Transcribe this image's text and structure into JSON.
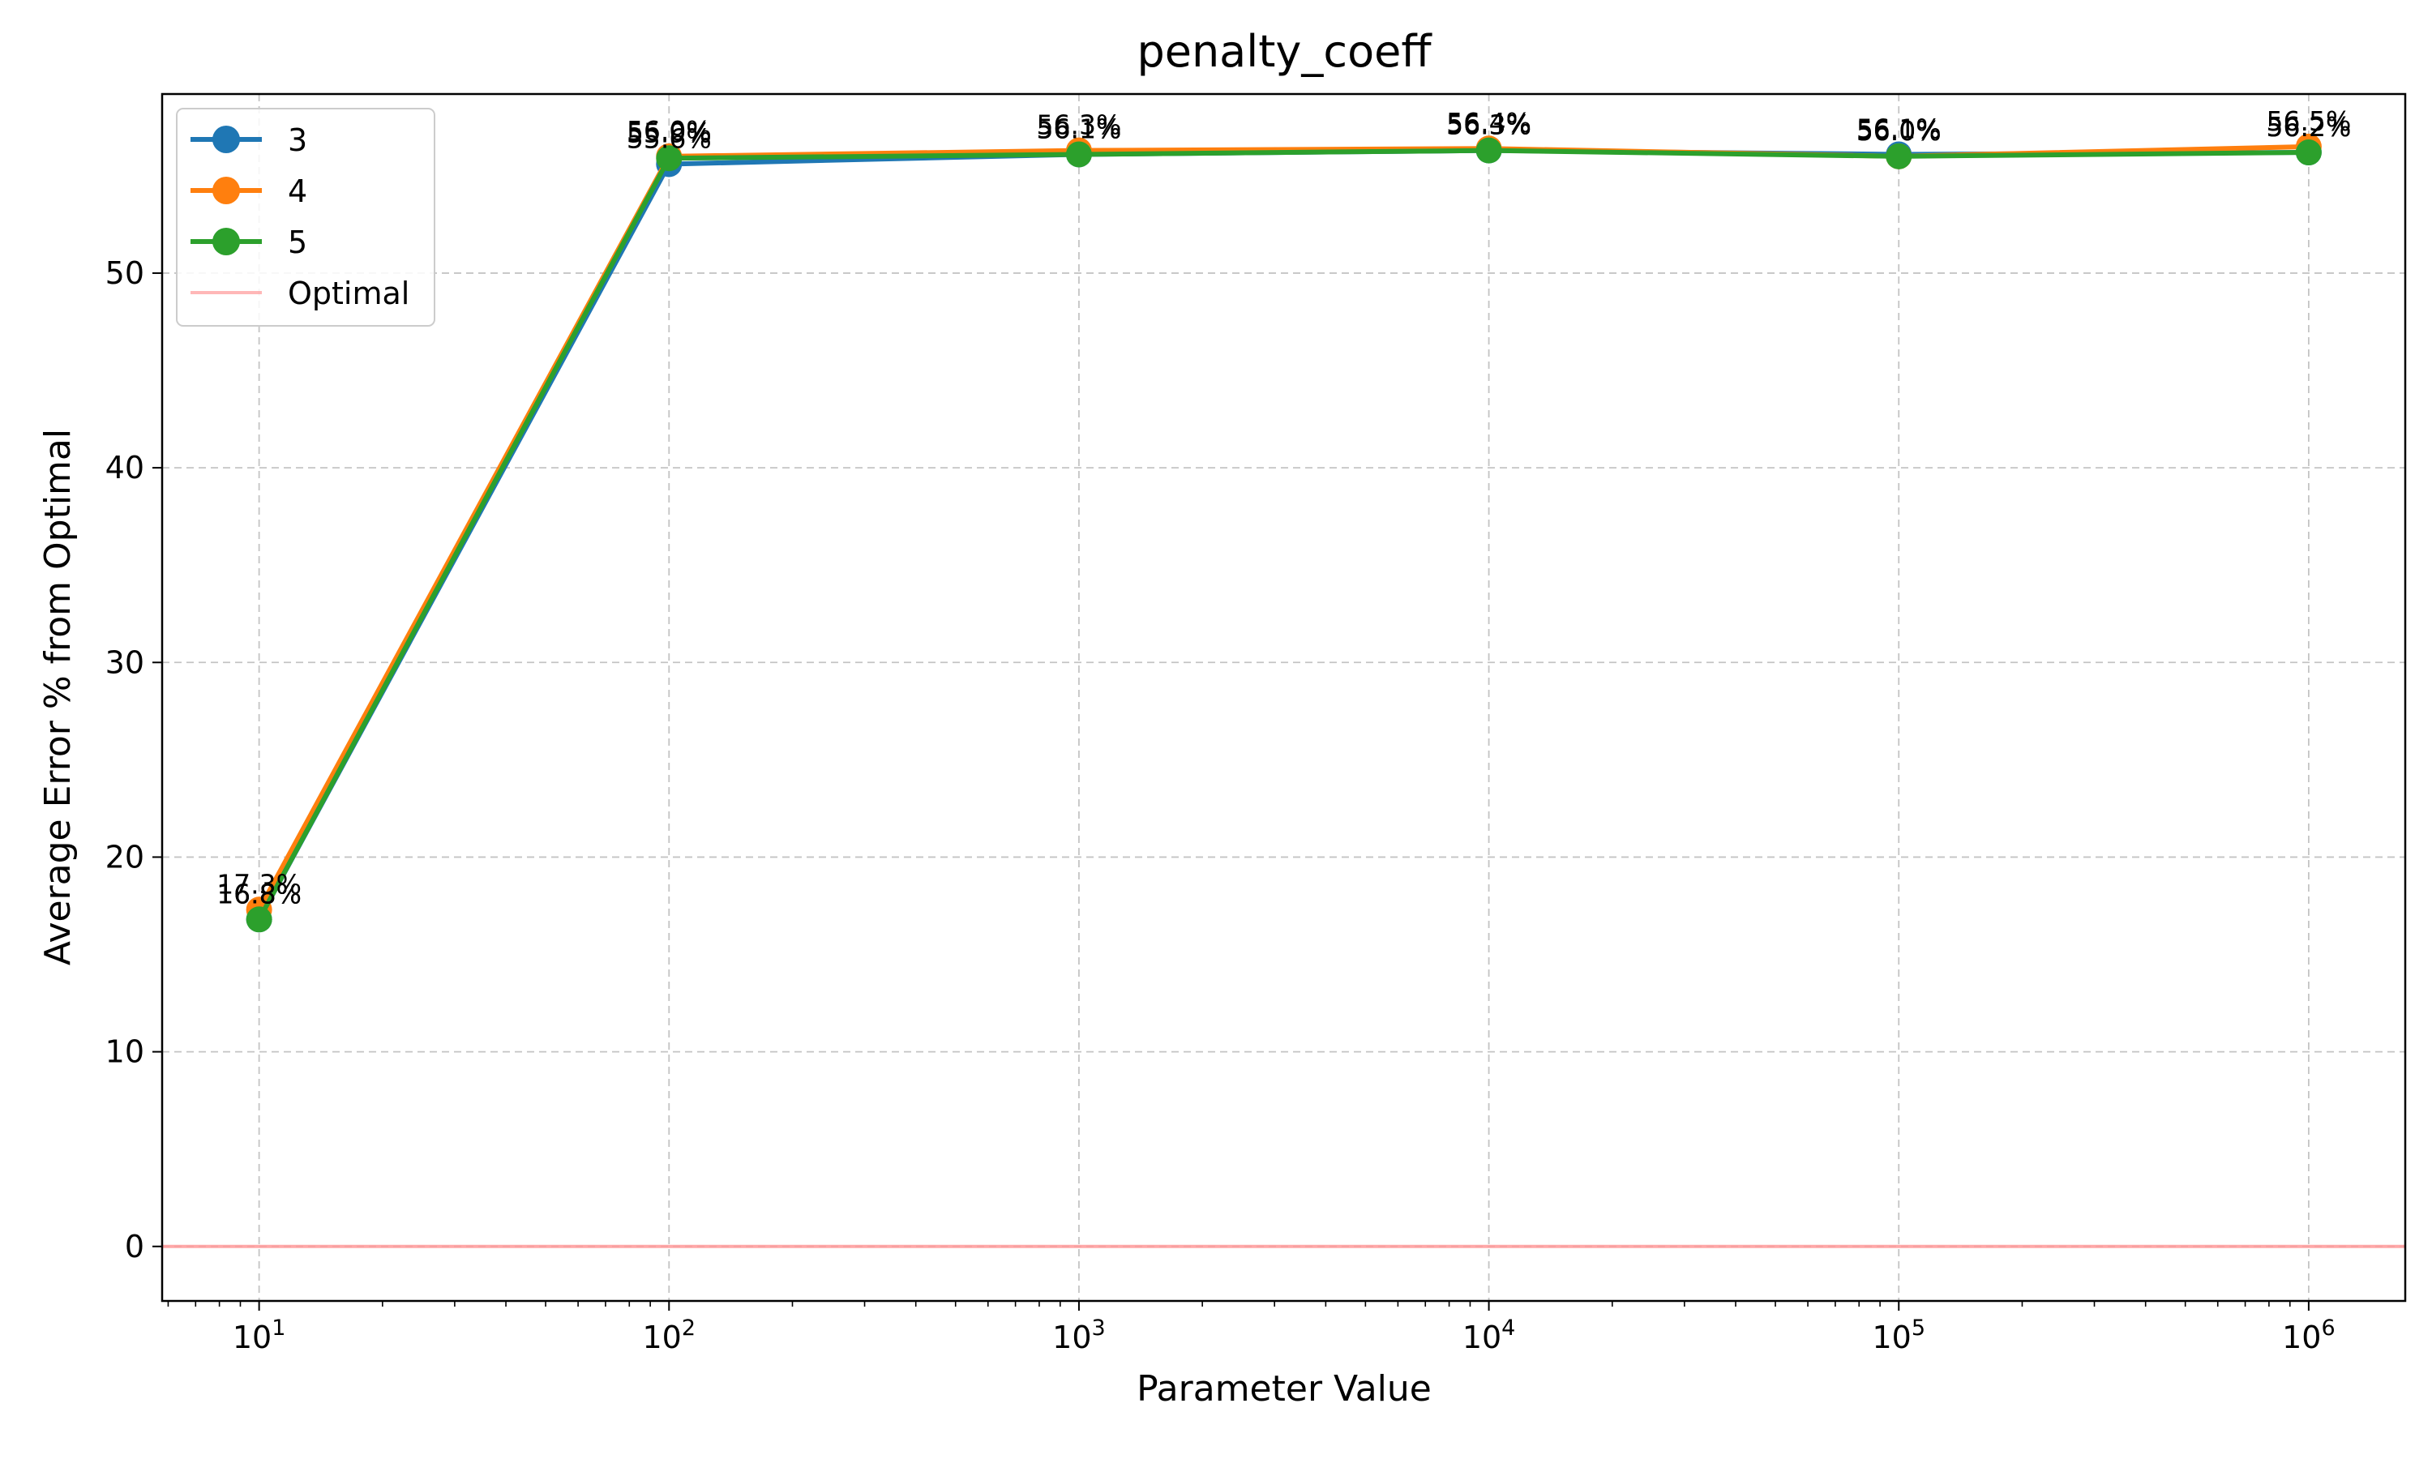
{
  "chart_data": {
    "type": "line",
    "title": "penalty_coeff",
    "xlabel": "Parameter Value",
    "ylabel": "Average Error % from Optimal",
    "x_scale": "log",
    "xlim": [
      5.8,
      1720000
    ],
    "ylim": [
      -2.8,
      59.2
    ],
    "x": [
      10,
      100,
      1000,
      10000,
      100000,
      1000000
    ],
    "x_tick_labels": [
      {
        "base": "10",
        "exp": "1"
      },
      {
        "base": "10",
        "exp": "2"
      },
      {
        "base": "10",
        "exp": "3"
      },
      {
        "base": "10",
        "exp": "4"
      },
      {
        "base": "10",
        "exp": "5"
      },
      {
        "base": "10",
        "exp": "6"
      }
    ],
    "y_ticks": [
      0,
      10,
      20,
      30,
      40,
      50
    ],
    "y_tick_labels": [
      "0",
      "10",
      "20",
      "30",
      "40",
      "50"
    ],
    "grid": true,
    "legend_position": "top-left",
    "series": [
      {
        "name": "3",
        "color": "#1f77b4",
        "values": [
          16.8,
          55.6,
          56.1,
          56.3,
          56.1,
          56.2
        ],
        "labels": [
          "16.8%",
          "55.6%",
          "56.1%",
          "56.3%",
          "56.1%",
          "56.2%"
        ]
      },
      {
        "name": "4",
        "color": "#ff7f0e",
        "values": [
          17.3,
          56.0,
          56.3,
          56.4,
          56.0,
          56.5
        ],
        "labels": [
          "17.3%",
          "56.0%",
          "56.3%",
          "56.4%",
          "56.0%",
          "56.5%"
        ]
      },
      {
        "name": "5",
        "color": "#2ca02c",
        "values": [
          16.8,
          55.9,
          56.1,
          56.3,
          56.0,
          56.2
        ],
        "labels": [
          "16.8%",
          "55.9%",
          "56.1%",
          "56.3%",
          "56.0%",
          "56.2%"
        ]
      }
    ],
    "reference_line": {
      "name": "Optimal",
      "value": 0,
      "color": "#ff9999"
    }
  }
}
